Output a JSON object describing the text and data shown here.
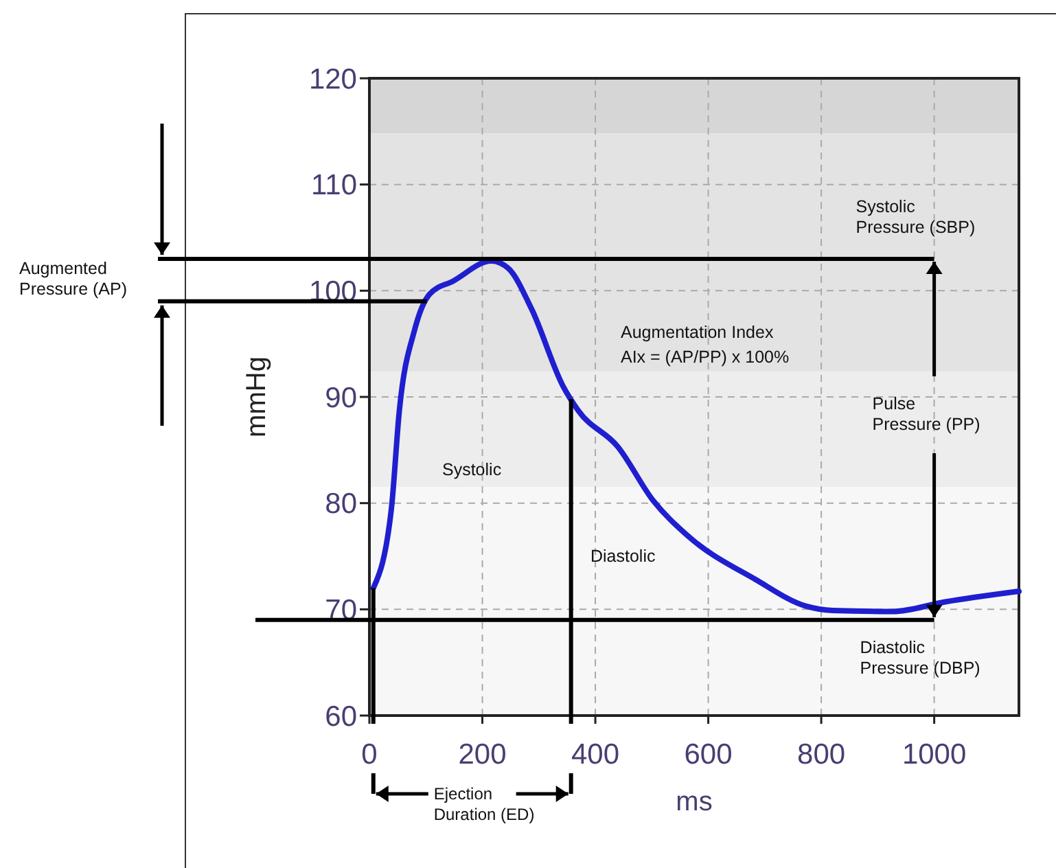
{
  "chart_data": {
    "type": "line",
    "xlabel": "ms",
    "ylabel": "mmHg",
    "xlim": [
      0,
      1150
    ],
    "ylim": [
      60,
      120
    ],
    "xticks": [
      0,
      200,
      400,
      600,
      800,
      1000
    ],
    "yticks": [
      60,
      70,
      80,
      90,
      100,
      110,
      120
    ],
    "grid": true,
    "line_style": "solid",
    "marker": "none",
    "series": [
      {
        "color": "#1f1fd0",
        "x": [
          7,
          39,
          53,
          80,
          107,
          148,
          216,
          246,
          287,
          343,
          370,
          440,
          503,
          562,
          684,
          773,
          820,
          927,
          1019,
          1150
        ],
        "values": [
          72.0,
          79.5,
          88.7,
          96.3,
          99.7,
          100.9,
          102.8,
          102.1,
          98.3,
          91.0,
          88.7,
          85.3,
          80.2,
          77.0,
          72.8,
          70.3,
          69.9,
          69.8,
          70.7,
          71.7
        ]
      }
    ],
    "bands": [
      {
        "axis": "y",
        "from": 114.8,
        "to": 120,
        "color": "#d6d6d6"
      },
      {
        "axis": "y",
        "from": 92.4,
        "to": 114.8,
        "color": "#e3e3e3"
      },
      {
        "axis": "y",
        "from": 81.5,
        "to": 92.4,
        "color": "#ededed"
      },
      {
        "axis": "y",
        "from": 60,
        "to": 81.5,
        "color": "#f7f7f7"
      }
    ],
    "ref_lines": [
      {
        "axis": "y",
        "value": 103,
        "label": "Systolic Pressure (SBP)",
        "color": "#000000"
      },
      {
        "axis": "y",
        "value": 99,
        "label": "Augmented Pressure (AP)",
        "color": "#000000"
      },
      {
        "axis": "y",
        "value": 69,
        "label": "Diastolic Pressure (DBP)",
        "color": "#000000"
      },
      {
        "axis": "x",
        "value": 7,
        "color": "#000000"
      },
      {
        "axis": "x",
        "value": 357,
        "color": "#000000"
      }
    ],
    "annotations": [
      "Systolic",
      "Diastolic",
      "Augmentation Index\nAIx = (AP/PP) x 100%",
      {
        "text": "Pulse Pressure (PP)",
        "x": 1000,
        "y": 69
      },
      "Ejection Duration (ED)"
    ]
  }
}
